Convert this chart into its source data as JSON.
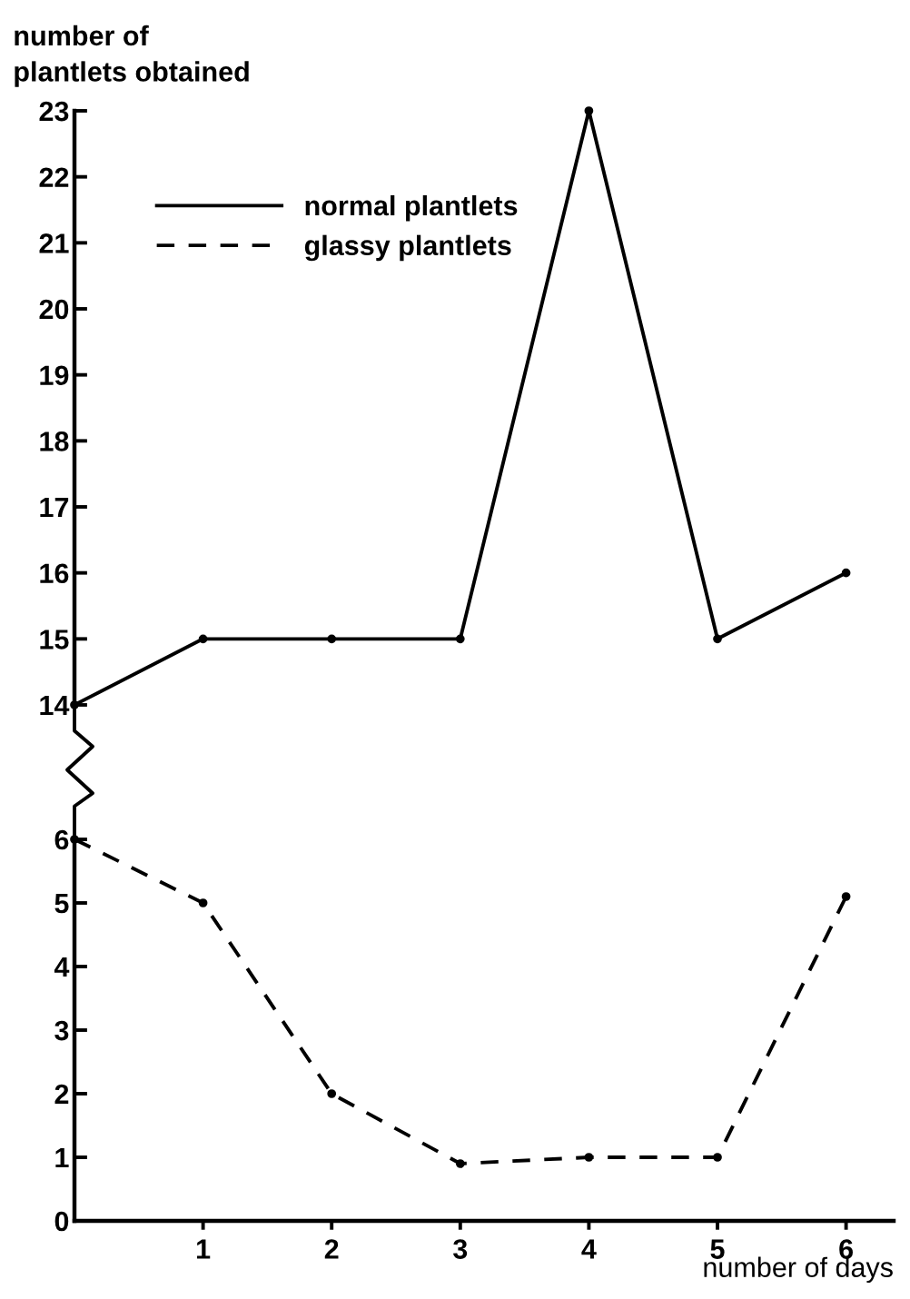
{
  "chart_data": [
    {
      "type": "line",
      "ylabel": "number of\nplantlets obtained",
      "x": [
        0,
        1,
        2,
        3,
        4,
        5,
        6
      ],
      "ylim": [
        14,
        23
      ],
      "yticks": [
        14,
        15,
        16,
        17,
        18,
        19,
        20,
        21,
        22,
        23
      ],
      "tick_labels": "y",
      "legend": "top left",
      "marker": "circle",
      "grid": false,
      "series": [
        {
          "name": "normal plantlets",
          "color": "#000000",
          "line_style": "solid",
          "values": [
            14,
            15,
            15,
            15,
            23,
            15,
            16
          ]
        }
      ]
    },
    {
      "type": "line",
      "xlabel": "number of days",
      "x": [
        0,
        1,
        2,
        3,
        4,
        5,
        6
      ],
      "xlim": [
        0,
        6.37
      ],
      "xticks": [
        1,
        2,
        3,
        4,
        5,
        6
      ],
      "ylim": [
        0,
        6
      ],
      "yticks": [
        0,
        1,
        2,
        3,
        4,
        5,
        6
      ],
      "marker": "circle",
      "grid": false,
      "series": [
        {
          "name": "glassy plantlets",
          "color": "#000000",
          "line_style": "dashed",
          "values": [
            6,
            5,
            2,
            0.9,
            1,
            1,
            5.1
          ]
        }
      ]
    }
  ]
}
